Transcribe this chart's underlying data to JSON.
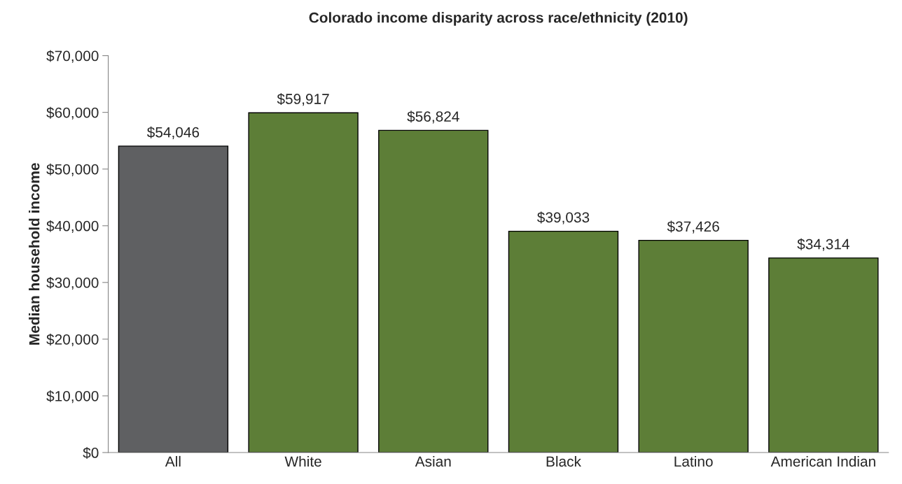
{
  "chart_data": {
    "type": "bar",
    "title": "Colorado income disparity across race/ethnicity (2010)",
    "ylabel": "Median household income",
    "categories": [
      "All",
      "White",
      "Asian",
      "Black",
      "Latino",
      "American Indian"
    ],
    "values": [
      54046,
      59917,
      56824,
      39033,
      37426,
      34314
    ],
    "colors": [
      "#5f6062",
      "#5e8a2b",
      "#5e8a2b",
      "#5e8a2b",
      "#5e8a2b",
      "#5e8a2b"
    ],
    "value_labels": [
      "$54,046",
      "$59,917",
      "$56,824",
      "$39,033",
      "$37,426",
      "$34,314"
    ],
    "ylim": [
      0,
      70000
    ],
    "yticks": [
      {
        "value": 0,
        "label": "$0"
      },
      {
        "value": 10000,
        "label": "$10,000"
      },
      {
        "value": 20000,
        "label": "$20,000"
      },
      {
        "value": 30000,
        "label": "$30,000"
      },
      {
        "value": 40000,
        "label": "$40,000"
      },
      {
        "value": 50000,
        "label": "$50,000"
      },
      {
        "value": 60000,
        "label": "$60,000"
      },
      {
        "value": 70000,
        "label": "$70,000"
      }
    ],
    "grid": false,
    "legend": false
  }
}
